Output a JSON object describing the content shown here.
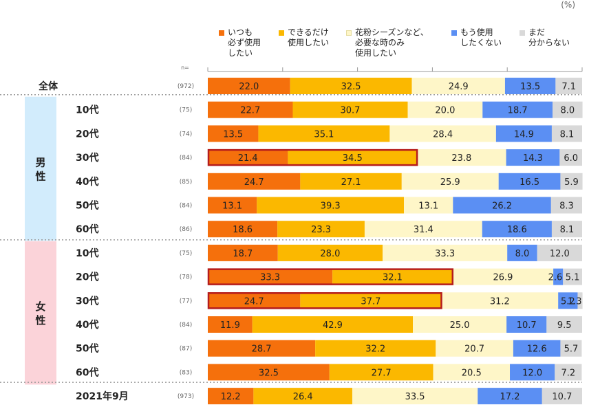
{
  "unit_label": "(%)",
  "n_header": "n=",
  "colors": {
    "always": "#f5700c",
    "when_possible": "#fbb800",
    "when_needed": "#fef6c8",
    "no_more": "#5b8ff3",
    "unknown": "#d9d9d9",
    "male_band": "#d2ecfc",
    "female_band": "#fbd3d9",
    "highlight": "#b51c1c"
  },
  "legend": [
    {
      "key": "always",
      "label": "いつも\n必ず使用\nしたい"
    },
    {
      "key": "when_possible",
      "label": "できるだけ\n使用したい"
    },
    {
      "key": "when_needed",
      "label": "花粉シーズンなど、\n必要な時のみ\n使用したい"
    },
    {
      "key": "no_more",
      "label": "もう使用\nしたくない"
    },
    {
      "key": "unknown",
      "label": "まだ\n分からない"
    }
  ],
  "groups": {
    "male": "男\n性",
    "female": "女\n性"
  },
  "chart_data": {
    "type": "stacked-bar-horizontal",
    "title": "",
    "xlim": [
      0,
      100
    ],
    "series": [
      "いつも必ず使用したい",
      "できるだけ使用したい",
      "花粉シーズンなど、必要な時のみ使用したい",
      "もう使用したくない",
      "まだ分からない"
    ],
    "rows": [
      {
        "group": "",
        "label": "全体",
        "n": "(972)",
        "values": [
          22.0,
          32.5,
          24.9,
          13.5,
          7.1
        ],
        "highlight": null
      },
      {
        "group": "male",
        "label": "10代",
        "n": "(75)",
        "values": [
          22.7,
          30.7,
          20.0,
          18.7,
          8.0
        ],
        "highlight": null
      },
      {
        "group": "male",
        "label": "20代",
        "n": "(74)",
        "values": [
          13.5,
          35.1,
          28.4,
          14.9,
          8.1
        ],
        "highlight": null
      },
      {
        "group": "male",
        "label": "30代",
        "n": "(84)",
        "values": [
          21.4,
          34.5,
          23.8,
          14.3,
          6.0
        ],
        "highlight": 2
      },
      {
        "group": "male",
        "label": "40代",
        "n": "(85)",
        "values": [
          24.7,
          27.1,
          25.9,
          16.5,
          5.9
        ],
        "highlight": null
      },
      {
        "group": "male",
        "label": "50代",
        "n": "(84)",
        "values": [
          13.1,
          39.3,
          13.1,
          26.2,
          8.3
        ],
        "highlight": null
      },
      {
        "group": "male",
        "label": "60代",
        "n": "(86)",
        "values": [
          18.6,
          23.3,
          31.4,
          18.6,
          8.1
        ],
        "highlight": null
      },
      {
        "group": "female",
        "label": "10代",
        "n": "(75)",
        "values": [
          18.7,
          28.0,
          33.3,
          8.0,
          12.0
        ],
        "highlight": null
      },
      {
        "group": "female",
        "label": "20代",
        "n": "(78)",
        "values": [
          33.3,
          32.1,
          26.9,
          2.6,
          5.1
        ],
        "highlight": 2
      },
      {
        "group": "female",
        "label": "30代",
        "n": "(77)",
        "values": [
          24.7,
          37.7,
          31.2,
          5.2,
          1.3
        ],
        "highlight": 2
      },
      {
        "group": "female",
        "label": "40代",
        "n": "(84)",
        "values": [
          11.9,
          42.9,
          25.0,
          10.7,
          9.5
        ],
        "highlight": null
      },
      {
        "group": "female",
        "label": "50代",
        "n": "(87)",
        "values": [
          28.7,
          32.2,
          20.7,
          12.6,
          5.7
        ],
        "highlight": null
      },
      {
        "group": "female",
        "label": "60代",
        "n": "(83)",
        "values": [
          32.5,
          27.7,
          20.5,
          12.0,
          7.2
        ],
        "highlight": null
      },
      {
        "group": "",
        "label": "2021年9月",
        "n": "(973)",
        "values": [
          12.2,
          26.4,
          33.5,
          17.2,
          10.7
        ],
        "highlight": null
      }
    ]
  }
}
